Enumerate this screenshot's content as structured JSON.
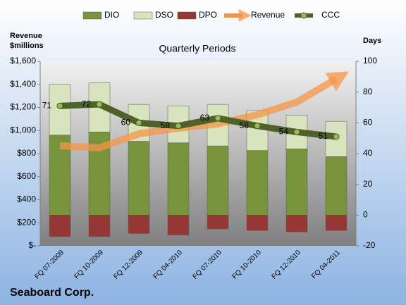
{
  "chart_data": {
    "type": "bar",
    "title": "Quarterly Periods",
    "company": "Seaboard Corp.",
    "y_label": "Revenue $millions",
    "y2_label": "Days",
    "categories": [
      "FQ 07-2009",
      "FQ 10-2009",
      "FQ 12-2009",
      "FQ 04-2010",
      "FQ 07-2010",
      "FQ 10-2010",
      "FQ 12-2010",
      "FQ 04-2011"
    ],
    "series": [
      {
        "name": "DIO",
        "type": "bar",
        "axis": "y2",
        "color": "#77933c",
        "values": [
          52,
          54,
          48,
          47,
          45,
          42,
          43,
          38
        ]
      },
      {
        "name": "DSO",
        "type": "bar",
        "axis": "y2",
        "color": "#d7e4bd",
        "values": [
          33,
          32,
          24,
          24,
          27,
          26,
          22,
          23
        ]
      },
      {
        "name": "DPO",
        "type": "bar",
        "axis": "y2",
        "color": "#953735",
        "values": [
          -14,
          -14,
          -12,
          -13,
          -9,
          -10,
          -11,
          -10
        ]
      },
      {
        "name": "Revenue",
        "type": "line",
        "axis": "y",
        "color": "#f79646",
        "values": [
          867,
          849,
          971,
          1020,
          1057,
          1136,
          1246,
          1447
        ]
      },
      {
        "name": "CCC",
        "type": "line",
        "axis": "y2",
        "color": "#4f6228",
        "values": [
          71,
          72,
          60,
          58,
          63,
          58,
          54,
          51
        ]
      }
    ],
    "ylim": [
      0,
      1600
    ],
    "yticks": [
      {
        "value": 0,
        "label": "$-"
      },
      {
        "value": 200,
        "label": "$200"
      },
      {
        "value": 400,
        "label": "$400"
      },
      {
        "value": 600,
        "label": "$600"
      },
      {
        "value": 800,
        "label": "$800"
      },
      {
        "value": 1000,
        "label": "$1,000"
      },
      {
        "value": 1200,
        "label": "$1,200"
      },
      {
        "value": 1400,
        "label": "$1,400"
      },
      {
        "value": 1600,
        "label": "$1,600"
      }
    ],
    "y2lim": [
      -20,
      100
    ],
    "y2ticks": [
      -20,
      0,
      20,
      40,
      60,
      80,
      100
    ],
    "legend": "top"
  }
}
